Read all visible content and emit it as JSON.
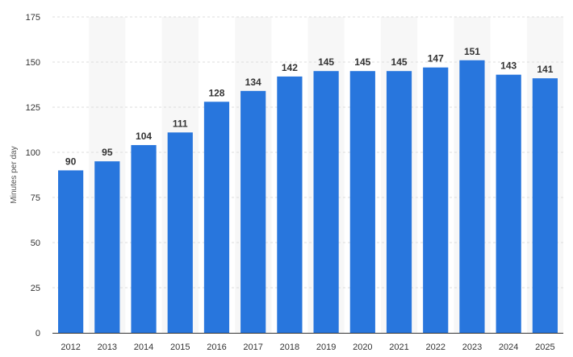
{
  "chart_data": {
    "type": "bar",
    "title": "",
    "xlabel": "",
    "ylabel": "Minutes per day",
    "ylim": [
      0,
      175
    ],
    "yticks": [
      0,
      25,
      50,
      75,
      100,
      125,
      150,
      175
    ],
    "grid": true,
    "categories": [
      "2012",
      "2013",
      "2014",
      "2015",
      "2016",
      "2017",
      "2018",
      "2019",
      "2020",
      "2021",
      "2022",
      "2023",
      "2024",
      "2025"
    ],
    "values": [
      90,
      95,
      104,
      111,
      128,
      134,
      142,
      145,
      145,
      145,
      147,
      151,
      143,
      141
    ],
    "colors": {
      "bar": "#2876DD",
      "band": "#F7F7F7",
      "grid": "#DDDDDD",
      "axis": "#333333"
    }
  }
}
